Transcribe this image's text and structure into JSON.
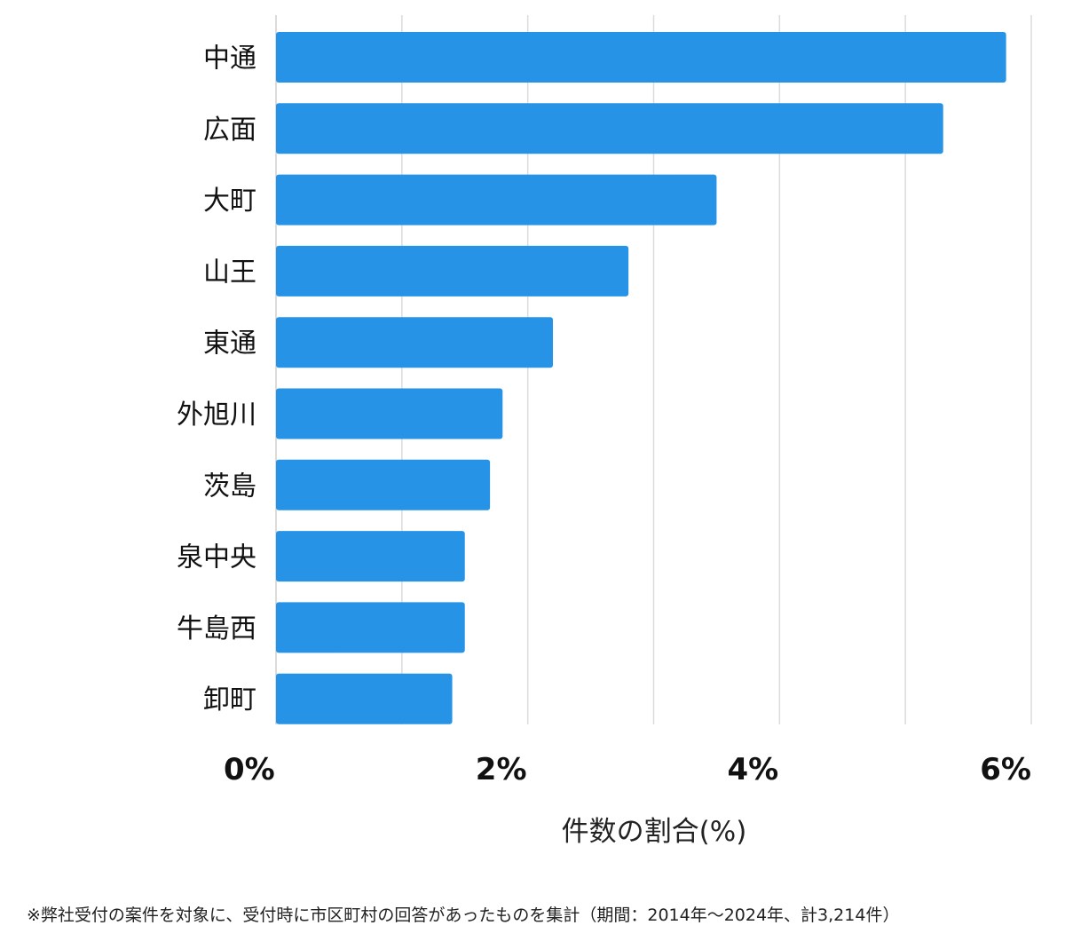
{
  "chart_data": {
    "type": "bar",
    "orientation": "horizontal",
    "categories": [
      "中通",
      "広面",
      "大町",
      "山王",
      "東通",
      "外旭川",
      "茨島",
      "泉中央",
      "牛島西",
      "卸町"
    ],
    "values": [
      5.8,
      5.3,
      3.5,
      2.8,
      2.2,
      1.8,
      1.7,
      1.5,
      1.5,
      1.4
    ],
    "xlim": [
      0,
      6
    ],
    "xticks": [
      0,
      2,
      4,
      6
    ],
    "xtick_labels": [
      "0%",
      "2%",
      "4%",
      "6%"
    ],
    "xlabel": "件数の割合(%)",
    "ylabel": "",
    "grid": true,
    "bar_color": "#2693e6"
  },
  "footnote": "※弊社受付の案件を対象に、受付時に市区町村の回答があったものを集計（期間：2014年～2024年、計3,214件）"
}
